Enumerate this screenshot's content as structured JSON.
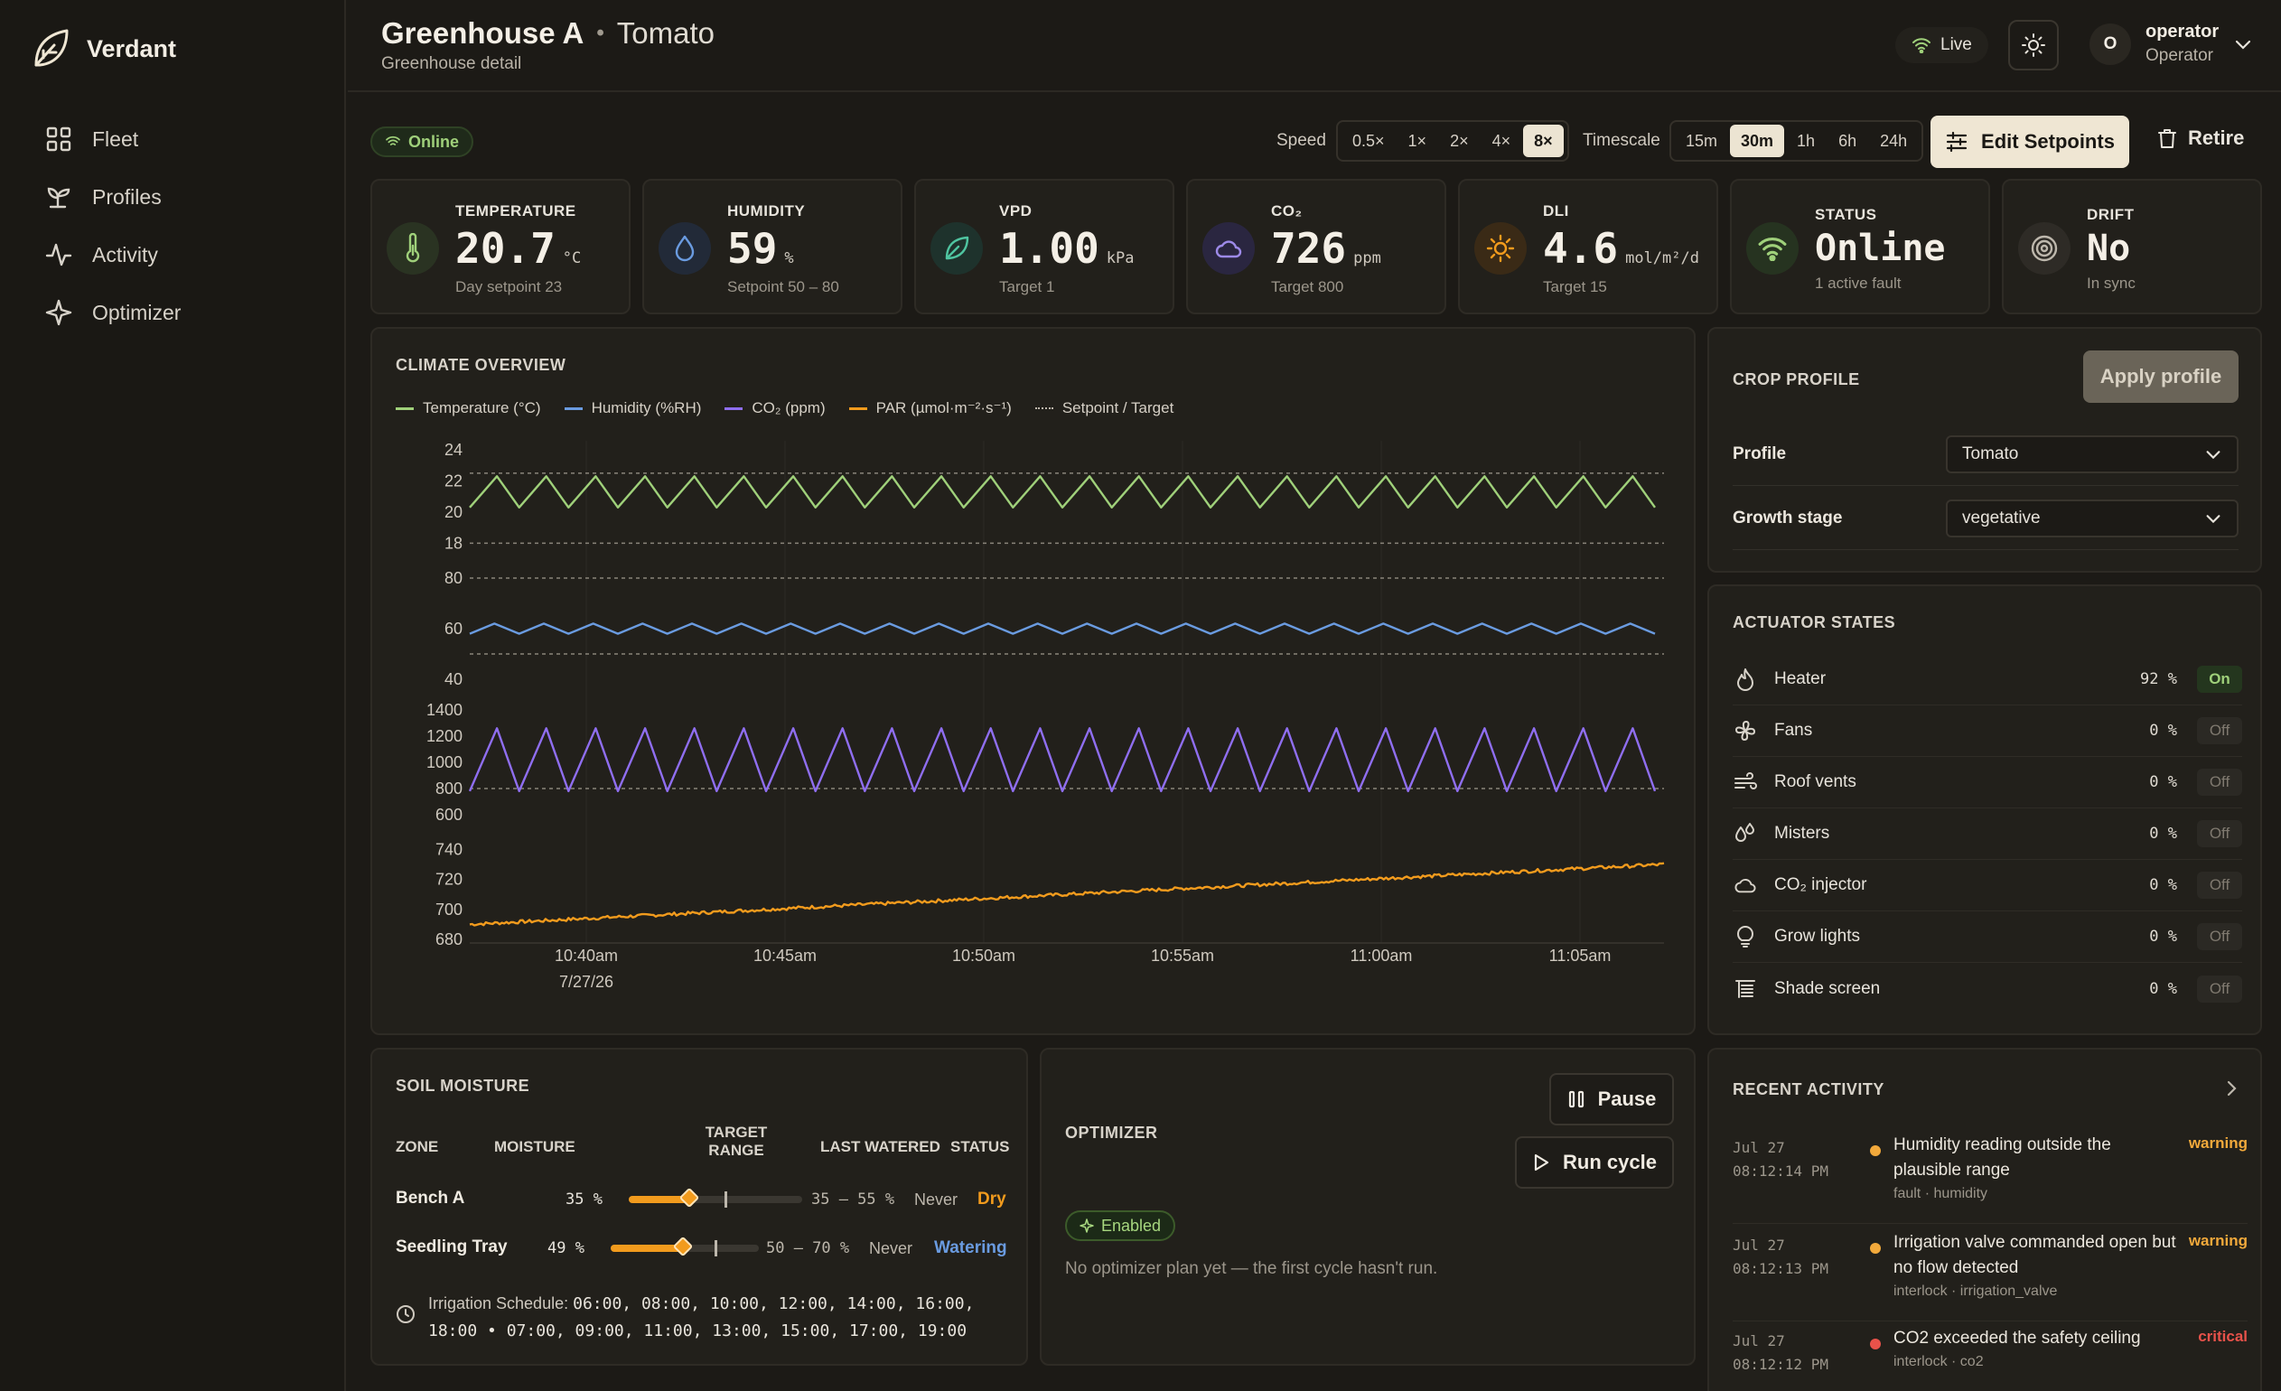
{
  "brand": {
    "name": "Verdant"
  },
  "nav": [
    {
      "label": "Fleet",
      "icon": "grid-icon"
    },
    {
      "label": "Profiles",
      "icon": "sprout-icon"
    },
    {
      "label": "Activity",
      "icon": "activity-icon"
    },
    {
      "label": "Optimizer",
      "icon": "sparkle-icon"
    }
  ],
  "header": {
    "title": "Greenhouse A",
    "separator": "•",
    "crop": "Tomato",
    "subtitle": "Greenhouse detail",
    "live_label": "Live",
    "user": {
      "initial": "O",
      "name": "operator",
      "role": "Operator"
    }
  },
  "toolbar": {
    "status_badge": "Online",
    "speed_label": "Speed",
    "speeds": [
      "0.5×",
      "1×",
      "2×",
      "4×",
      "8×"
    ],
    "speed_active": "8×",
    "timescale_label": "Timescale",
    "timescales": [
      "15m",
      "30m",
      "1h",
      "6h",
      "24h"
    ],
    "timescale_active": "30m",
    "edit_label": "Edit Setpoints",
    "retire_label": "Retire"
  },
  "metrics": [
    {
      "label": "TEMPERATURE",
      "value": "20.7",
      "unit": "°C",
      "caption": "Day setpoint 23",
      "icon": "thermometer-icon",
      "color": "#9fd07a"
    },
    {
      "label": "HUMIDITY",
      "value": "59",
      "unit": "%",
      "caption": "Setpoint 50 – 80",
      "icon": "droplet-icon",
      "color": "#6a9be0"
    },
    {
      "label": "VPD",
      "value": "1.00",
      "unit": "kPa",
      "caption": "Target 1",
      "icon": "leaf-icon",
      "color": "#4fc4a0"
    },
    {
      "label": "CO₂",
      "value": "726",
      "unit": "ppm",
      "caption": "Target 800",
      "icon": "cloud-icon",
      "color": "#9d8ae8"
    },
    {
      "label": "DLI",
      "value": "4.6",
      "unit": "mol/m²/d",
      "caption": "Target 15",
      "icon": "sun-icon",
      "color": "#f29b1d"
    },
    {
      "label": "STATUS",
      "value": "Online",
      "unit": "",
      "caption": "1 active fault",
      "icon": "wifi-icon",
      "color": "#9fd07a"
    },
    {
      "label": "DRIFT",
      "value": "No",
      "unit": "",
      "caption": "In sync",
      "icon": "target-icon",
      "color": "#bdb7ac"
    }
  ],
  "chart": {
    "section_title": "CLIMATE OVERVIEW",
    "legend": [
      {
        "label": "Temperature (°C)",
        "color": "#9fd07a"
      },
      {
        "label": "Humidity (%RH)",
        "color": "#6a9be0"
      },
      {
        "label": "CO₂ (ppm)",
        "color": "#8f6ef0"
      },
      {
        "label": "PAR (µmol·m⁻²·s⁻¹)",
        "color": "#f29b1d"
      },
      {
        "label": "Setpoint / Target",
        "color": "#bdb7ac"
      }
    ],
    "x_ticks": [
      "10:40am",
      "10:45am",
      "10:50am",
      "10:55am",
      "11:00am",
      "11:05am"
    ],
    "x_date": "7/27/26"
  },
  "chart_data": {
    "type": "line",
    "x": [
      "10:40am",
      "10:45am",
      "10:50am",
      "10:55am",
      "11:00am",
      "11:05am"
    ],
    "panels": [
      {
        "name": "Temperature (°C)",
        "yticks": [
          24,
          22,
          20,
          18
        ],
        "ylim": [
          17.5,
          24
        ],
        "setpoints": [
          22.5,
          18
        ],
        "low": 20.3,
        "high": 22.3,
        "cycles": 24,
        "color": "#9fd07a"
      },
      {
        "name": "Humidity (%RH)",
        "yticks": [
          80,
          60,
          40
        ],
        "ylim": [
          40,
          80
        ],
        "setpoints": [
          80,
          50
        ],
        "low": 58,
        "high": 62,
        "cycles": 24,
        "color": "#6a9be0"
      },
      {
        "name": "CO₂ (ppm)",
        "yticks": [
          1400,
          1200,
          1000,
          800,
          600
        ],
        "ylim": [
          600,
          1400
        ],
        "setpoints": [
          800
        ],
        "low": 780,
        "high": 1260,
        "cycles": 24,
        "color": "#8f6ef0"
      },
      {
        "name": "PAR (µmol·m⁻²·s⁻¹)",
        "yticks": [
          740,
          720,
          700,
          680
        ],
        "ylim": [
          680,
          745
        ],
        "start": 690,
        "end": 730,
        "color": "#f29b1d"
      }
    ]
  },
  "crop_profile": {
    "title": "CROP PROFILE",
    "apply_label": "Apply profile",
    "profile_label": "Profile",
    "profile_value": "Tomato",
    "stage_label": "Growth stage",
    "stage_value": "vegetative"
  },
  "actuators": {
    "title": "ACTUATOR STATES",
    "items": [
      {
        "name": "Heater",
        "pct": "92 %",
        "state": "On",
        "icon": "flame-icon"
      },
      {
        "name": "Fans",
        "pct": "0 %",
        "state": "Off",
        "icon": "fan-icon"
      },
      {
        "name": "Roof vents",
        "pct": "0 %",
        "state": "Off",
        "icon": "wind-icon"
      },
      {
        "name": "Misters",
        "pct": "0 %",
        "state": "Off",
        "icon": "droplets-icon"
      },
      {
        "name": "CO₂ injector",
        "pct": "0 %",
        "state": "Off",
        "icon": "cloud-icon"
      },
      {
        "name": "Grow lights",
        "pct": "0 %",
        "state": "Off",
        "icon": "bulb-icon"
      },
      {
        "name": "Shade screen",
        "pct": "0 %",
        "state": "Off",
        "icon": "blinds-icon"
      }
    ]
  },
  "soil": {
    "title": "SOIL MOISTURE",
    "headers": {
      "zone": "ZONE",
      "moisture": "MOISTURE",
      "target": "TARGET",
      "range": "RANGE",
      "last": "LAST WATERED",
      "status": "STATUS"
    },
    "rows": [
      {
        "zone": "Bench A",
        "moisture": "35 %",
        "fill": 0.35,
        "target": 0.55,
        "range": "35 – 55 %",
        "last": "Never",
        "status": "Dry",
        "status_color": "#f29b1d"
      },
      {
        "zone": "Seedling Tray",
        "moisture": "49 %",
        "fill": 0.49,
        "target": 0.7,
        "range": "50 – 70 %",
        "last": "Never",
        "status": "Watering",
        "status_color": "#6a9be0"
      }
    ],
    "schedule_label": "Irrigation Schedule:",
    "schedule_line1": "06:00, 08:00, 10:00, 12:00, 14:00, 16:00,",
    "schedule_line2": "18:00 • 07:00, 09:00, 11:00, 13:00, 15:00, 17:00, 19:00"
  },
  "optimizer": {
    "title": "OPTIMIZER",
    "pause_label": "Pause",
    "run_label": "Run cycle",
    "enabled_label": "Enabled",
    "empty_text": "No optimizer plan yet — the first cycle hasn't run."
  },
  "activity": {
    "title": "RECENT ACTIVITY",
    "items": [
      {
        "date": "Jul 27",
        "time": "08:12:14 PM",
        "msg": "Humidity reading outside the plausible range",
        "meta": "fault · humidity",
        "level": "warning",
        "color": "#f2a93b"
      },
      {
        "date": "Jul 27",
        "time": "08:12:13 PM",
        "msg": "Irrigation valve commanded open but no flow detected",
        "meta": "interlock · irrigation_valve",
        "level": "warning",
        "color": "#f2a93b"
      },
      {
        "date": "Jul 27",
        "time": "08:12:12 PM",
        "msg": "CO2 exceeded the safety ceiling",
        "meta": "interlock · co2",
        "level": "critical",
        "color": "#e8524a"
      }
    ]
  }
}
